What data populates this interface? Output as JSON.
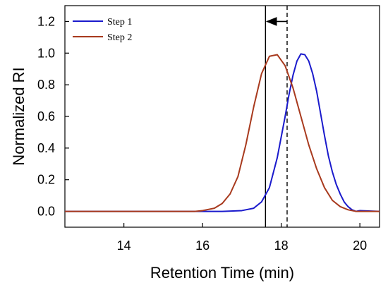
{
  "chart_data": {
    "type": "line",
    "xlabel": "Retention Time (min)",
    "ylabel": "Normalized RI",
    "xlim": [
      12.5,
      20.5
    ],
    "ylim": [
      -0.1,
      1.3
    ],
    "xticks": [
      14,
      16,
      18,
      20
    ],
    "yticks": [
      0.0,
      0.2,
      0.4,
      0.6,
      0.8,
      1.0,
      1.2
    ],
    "ytick_labels": [
      "0.0",
      "0.2",
      "0.4",
      "0.6",
      "0.8",
      "1.0",
      "1.2"
    ],
    "grid": false,
    "legend_position": "top-left",
    "series": [
      {
        "name": "Step 1",
        "color": "#1a1acc",
        "x": [
          12.5,
          16.5,
          17.0,
          17.3,
          17.5,
          17.7,
          17.9,
          18.1,
          18.2,
          18.3,
          18.4,
          18.5,
          18.6,
          18.7,
          18.8,
          18.9,
          19.0,
          19.1,
          19.2,
          19.3,
          19.4,
          19.5,
          19.6,
          19.7,
          19.8,
          19.9,
          20.0,
          20.5
        ],
        "y": [
          0.0,
          0.0,
          0.005,
          0.02,
          0.06,
          0.15,
          0.34,
          0.6,
          0.74,
          0.86,
          0.95,
          0.995,
          0.99,
          0.95,
          0.87,
          0.76,
          0.62,
          0.48,
          0.35,
          0.25,
          0.17,
          0.11,
          0.06,
          0.03,
          0.01,
          0.0,
          0.005,
          0.0
        ]
      },
      {
        "name": "Step 2",
        "color": "#a83a1e",
        "x": [
          12.5,
          15.8,
          16.0,
          16.3,
          16.5,
          16.7,
          16.9,
          17.1,
          17.3,
          17.5,
          17.7,
          17.9,
          18.1,
          18.3,
          18.5,
          18.7,
          18.9,
          19.1,
          19.3,
          19.5,
          19.7,
          19.9,
          20.5
        ],
        "y": [
          0.0,
          0.0,
          0.005,
          0.02,
          0.05,
          0.11,
          0.22,
          0.42,
          0.66,
          0.87,
          0.98,
          0.99,
          0.92,
          0.78,
          0.6,
          0.42,
          0.27,
          0.15,
          0.07,
          0.03,
          0.01,
          0.0,
          0.0
        ]
      }
    ],
    "annotations": {
      "solid_vline_x": 17.6,
      "dashed_vline_x": 18.15,
      "arrow": {
        "from_x": 18.15,
        "to_x": 17.6,
        "y": 1.2
      }
    },
    "colors": {
      "axis": "#000000",
      "background": "#ffffff"
    }
  }
}
